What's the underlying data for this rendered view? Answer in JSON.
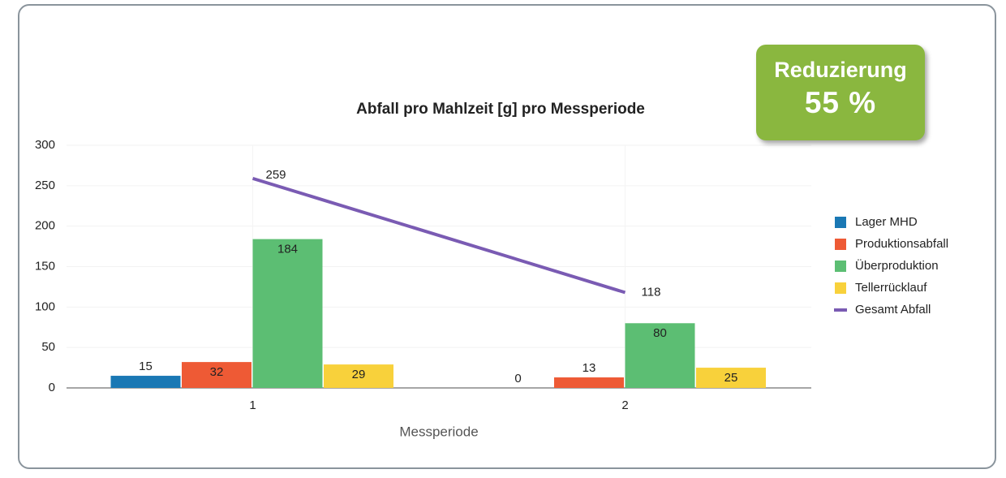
{
  "chart_data": {
    "type": "bar",
    "title": "Abfall pro Mahlzeit [g] pro Messperiode",
    "x_label": "Messperiode",
    "categories": [
      "1",
      "2"
    ],
    "series": [
      {
        "name": "Lager MHD",
        "color": "#1a78b4",
        "values": [
          15,
          0
        ]
      },
      {
        "name": "Produktionsabfall",
        "color": "#ee5a35",
        "values": [
          32,
          13
        ]
      },
      {
        "name": "Überproduktion",
        "color": "#5cbe73",
        "values": [
          184,
          80
        ]
      },
      {
        "name": "Tellerrücklauf",
        "color": "#f8d13b",
        "values": [
          29,
          25
        ]
      },
      {
        "name": "Gesamt Abfall",
        "color": "#7a5bb3",
        "type": "line",
        "values": [
          259,
          118
        ]
      }
    ],
    "ylim": [
      0,
      300
    ],
    "yticks": [
      0,
      50,
      100,
      150,
      200,
      250,
      300
    ],
    "grid": true,
    "legend": "right",
    "annotation": {
      "label": "Reduzierung",
      "value": "55 %"
    }
  }
}
